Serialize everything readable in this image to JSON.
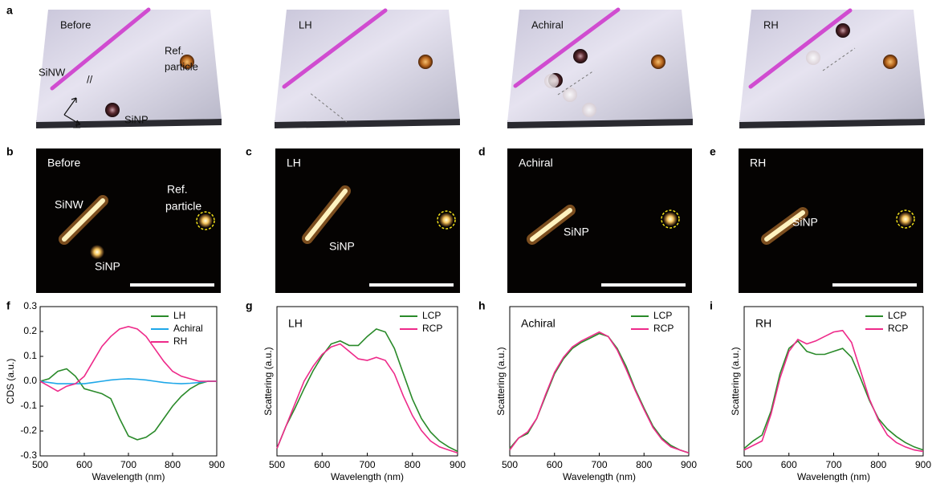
{
  "panel_labels": [
    "a",
    "b",
    "c",
    "d",
    "e",
    "f",
    "g",
    "h",
    "i"
  ],
  "schematics": [
    {
      "title": "Before",
      "ref": [
        "Ref.",
        "particle"
      ],
      "labels": [
        "SiNW",
        "//",
        "⊥",
        "SiNP"
      ]
    },
    {
      "title": "LH"
    },
    {
      "title": "Achiral"
    },
    {
      "title": "RH"
    }
  ],
  "micrographs": [
    {
      "title": "Before",
      "labels": [
        "SiNW",
        "SiNP"
      ],
      "ref": [
        "Ref.",
        "particle"
      ]
    },
    {
      "title": "LH",
      "labels": [
        "SiNP"
      ]
    },
    {
      "title": "Achiral",
      "labels": [
        "SiNP"
      ]
    },
    {
      "title": "RH",
      "labels": [
        "SiNP"
      ]
    }
  ],
  "chart_data": [
    {
      "type": "line",
      "xlabel": "Wavelength (nm)",
      "ylabel": "CDS (a.u.)",
      "x": [
        500,
        520,
        540,
        560,
        580,
        600,
        620,
        640,
        660,
        680,
        700,
        720,
        740,
        760,
        780,
        800,
        820,
        840,
        860,
        880,
        900
      ],
      "xlim": [
        500,
        900
      ],
      "xticks": [
        500,
        600,
        700,
        800,
        900
      ],
      "ylim": [
        -0.3,
        0.3
      ],
      "yticks": [
        -0.3,
        -0.2,
        -0.1,
        {
          "value": 0,
          "label": "0.0"
        },
        0.1,
        0.2,
        0.3
      ],
      "legend": "upper right",
      "series": [
        {
          "name": "LH",
          "color": "#2a8a2a",
          "values": [
            0,
            0.01,
            0.04,
            0.05,
            0.02,
            -0.03,
            -0.04,
            -0.05,
            -0.07,
            -0.15,
            -0.22,
            -0.235,
            -0.225,
            -0.2,
            -0.15,
            -0.1,
            -0.06,
            -0.03,
            -0.01,
            0,
            0
          ]
        },
        {
          "name": "Achiral",
          "color": "#1ea7e8",
          "values": [
            0,
            -0.005,
            -0.01,
            -0.01,
            -0.01,
            -0.01,
            -0.005,
            0,
            0.005,
            0.008,
            0.01,
            0.008,
            0.005,
            0,
            -0.005,
            -0.008,
            -0.01,
            -0.008,
            -0.005,
            0,
            0
          ]
        },
        {
          "name": "RH",
          "color": "#ee2a8a",
          "values": [
            0,
            -0.02,
            -0.04,
            -0.02,
            -0.01,
            0.02,
            0.08,
            0.14,
            0.18,
            0.21,
            0.22,
            0.21,
            0.18,
            0.13,
            0.08,
            0.04,
            0.02,
            0.01,
            0,
            0,
            0
          ]
        }
      ]
    },
    {
      "type": "line",
      "annotation": "LH",
      "xlabel": "Wavelength (nm)",
      "ylabel": "Scattering (a.u.)",
      "x": [
        500,
        520,
        540,
        560,
        580,
        600,
        620,
        640,
        660,
        680,
        700,
        720,
        740,
        760,
        780,
        800,
        820,
        840,
        860,
        880,
        900
      ],
      "xlim": [
        500,
        900
      ],
      "xticks": [
        500,
        600,
        700,
        800,
        900
      ],
      "ylim": [
        0,
        1
      ],
      "legend": "upper right",
      "series": [
        {
          "name": "LCP",
          "color": "#2a8a2a",
          "values": [
            0.05,
            0.2,
            0.32,
            0.45,
            0.57,
            0.67,
            0.75,
            0.77,
            0.74,
            0.74,
            0.8,
            0.85,
            0.83,
            0.72,
            0.55,
            0.38,
            0.25,
            0.16,
            0.1,
            0.06,
            0.03
          ]
        },
        {
          "name": "RCP",
          "color": "#ee2a8a",
          "values": [
            0.05,
            0.2,
            0.35,
            0.5,
            0.6,
            0.68,
            0.73,
            0.75,
            0.7,
            0.65,
            0.64,
            0.66,
            0.64,
            0.55,
            0.4,
            0.27,
            0.17,
            0.1,
            0.06,
            0.04,
            0.02
          ]
        }
      ]
    },
    {
      "type": "line",
      "annotation": "Achiral",
      "xlabel": "Wavelength (nm)",
      "ylabel": "Scattering (a.u.)",
      "x": [
        500,
        520,
        540,
        560,
        580,
        600,
        620,
        640,
        660,
        680,
        700,
        720,
        740,
        760,
        780,
        800,
        820,
        840,
        860,
        880,
        900
      ],
      "xlim": [
        500,
        900
      ],
      "xticks": [
        500,
        600,
        700,
        800,
        900
      ],
      "ylim": [
        0,
        1
      ],
      "legend": "upper right",
      "series": [
        {
          "name": "LCP",
          "color": "#2a8a2a",
          "values": [
            0.05,
            0.12,
            0.15,
            0.25,
            0.4,
            0.55,
            0.65,
            0.72,
            0.76,
            0.79,
            0.82,
            0.8,
            0.72,
            0.6,
            0.45,
            0.32,
            0.2,
            0.12,
            0.07,
            0.04,
            0.02
          ]
        },
        {
          "name": "RCP",
          "color": "#ee2a8a",
          "values": [
            0.04,
            0.12,
            0.16,
            0.25,
            0.41,
            0.56,
            0.66,
            0.73,
            0.77,
            0.8,
            0.83,
            0.8,
            0.71,
            0.58,
            0.44,
            0.31,
            0.19,
            0.11,
            0.06,
            0.04,
            0.02
          ]
        }
      ]
    },
    {
      "type": "line",
      "annotation": "RH",
      "xlabel": "Wavelength (nm)",
      "ylabel": "Scattering (a.u.)",
      "x": [
        500,
        520,
        540,
        560,
        580,
        600,
        620,
        640,
        660,
        680,
        700,
        720,
        740,
        760,
        780,
        800,
        820,
        840,
        860,
        880,
        900
      ],
      "xlim": [
        500,
        900
      ],
      "xticks": [
        500,
        600,
        700,
        800,
        900
      ],
      "ylim": [
        0,
        1
      ],
      "legend": "upper right",
      "series": [
        {
          "name": "LCP",
          "color": "#2a8a2a",
          "values": [
            0.05,
            0.1,
            0.14,
            0.3,
            0.55,
            0.72,
            0.77,
            0.7,
            0.68,
            0.68,
            0.7,
            0.72,
            0.66,
            0.52,
            0.37,
            0.25,
            0.18,
            0.13,
            0.09,
            0.06,
            0.04
          ]
        },
        {
          "name": "RCP",
          "color": "#ee2a8a",
          "values": [
            0.04,
            0.07,
            0.1,
            0.28,
            0.52,
            0.7,
            0.78,
            0.75,
            0.77,
            0.8,
            0.83,
            0.84,
            0.76,
            0.57,
            0.38,
            0.24,
            0.14,
            0.09,
            0.06,
            0.04,
            0.03
          ]
        }
      ]
    }
  ]
}
